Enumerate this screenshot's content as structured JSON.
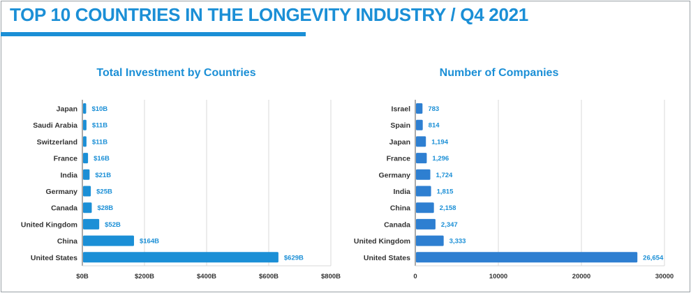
{
  "header": {
    "title": "TOP 10 COUNTRIES IN THE LONGEVITY INDUSTRY / Q4 2021"
  },
  "colors": {
    "accent": "#1b8fd6",
    "investment_bar": "#1b8fd6",
    "companies_bar": "#2e7fd1"
  },
  "chart_data": [
    {
      "type": "bar",
      "orientation": "horizontal",
      "title": "Total Investment by Countries",
      "categories": [
        "Japan",
        "Saudi Arabia",
        "Switzerland",
        "France",
        "India",
        "Germany",
        "Canada",
        "United Kingdom",
        "China",
        "United States"
      ],
      "values": [
        10,
        11,
        11,
        16,
        21,
        25,
        28,
        52,
        164,
        629
      ],
      "data_labels": [
        "$10B",
        "$11B",
        "$11B",
        "$16B",
        "$21B",
        "$25B",
        "$28B",
        "$52B",
        "$164B",
        "$629B"
      ],
      "xlim": [
        0,
        800
      ],
      "xticks": [
        0,
        200,
        400,
        600,
        800
      ],
      "xtick_labels": [
        "$0B",
        "$200B",
        "$400B",
        "$600B",
        "$800B"
      ],
      "grid": true
    },
    {
      "type": "bar",
      "orientation": "horizontal",
      "title": "Number of Companies",
      "categories": [
        "Israel",
        "Spain",
        "Japan",
        "France",
        "Germany",
        "India",
        "China",
        "Canada",
        "United Kingdom",
        "United States"
      ],
      "values": [
        783,
        814,
        1194,
        1296,
        1724,
        1815,
        2158,
        2347,
        3333,
        26654
      ],
      "data_labels": [
        "783",
        "814",
        "1,194",
        "1,296",
        "1,724",
        "1,815",
        "2,158",
        "2,347",
        "3,333",
        "26,654"
      ],
      "xlim": [
        0,
        30000
      ],
      "xticks": [
        0,
        10000,
        20000,
        30000
      ],
      "xtick_labels": [
        "0",
        "10000",
        "20000",
        "30000"
      ],
      "grid": true
    }
  ]
}
